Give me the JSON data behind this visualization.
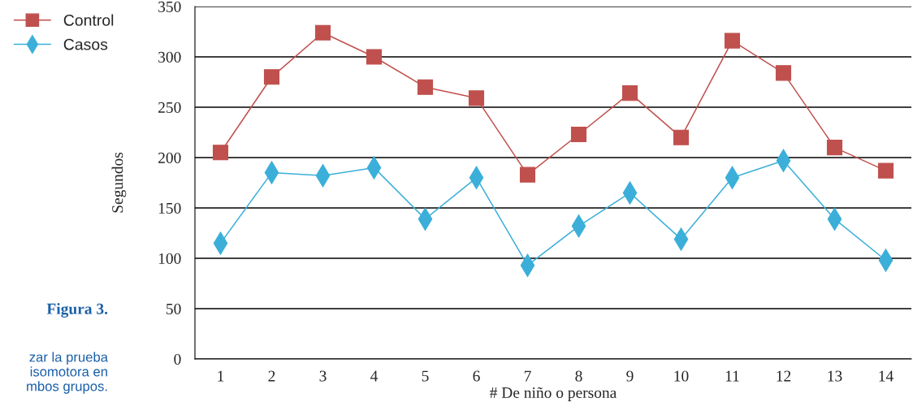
{
  "chart_data": {
    "type": "line",
    "xlabel": "# De niño o persona",
    "ylabel": "Segundos",
    "categories": [
      "1",
      "2",
      "3",
      "4",
      "5",
      "6",
      "7",
      "8",
      "9",
      "10",
      "11",
      "12",
      "13",
      "14"
    ],
    "series": [
      {
        "name": "Control",
        "color": "#c0504d",
        "marker": "square",
        "values": [
          205,
          280,
          324,
          300,
          270,
          259,
          183,
          223,
          264,
          220,
          316,
          284,
          210,
          187
        ]
      },
      {
        "name": "Casos",
        "color": "#3bafd9",
        "marker": "diamond",
        "values": [
          115,
          185,
          182,
          190,
          139,
          180,
          93,
          132,
          165,
          119,
          180,
          197,
          139,
          98
        ]
      }
    ],
    "ylim": [
      0,
      350
    ],
    "yticks": [
      0,
      50,
      100,
      150,
      200,
      250,
      300,
      350
    ],
    "grid": "y",
    "legend": "top left",
    "line_style": "solid",
    "annotations": [
      "Figura 3.",
      "zar la prueba\nisomotora en\nmbos grupos."
    ]
  }
}
